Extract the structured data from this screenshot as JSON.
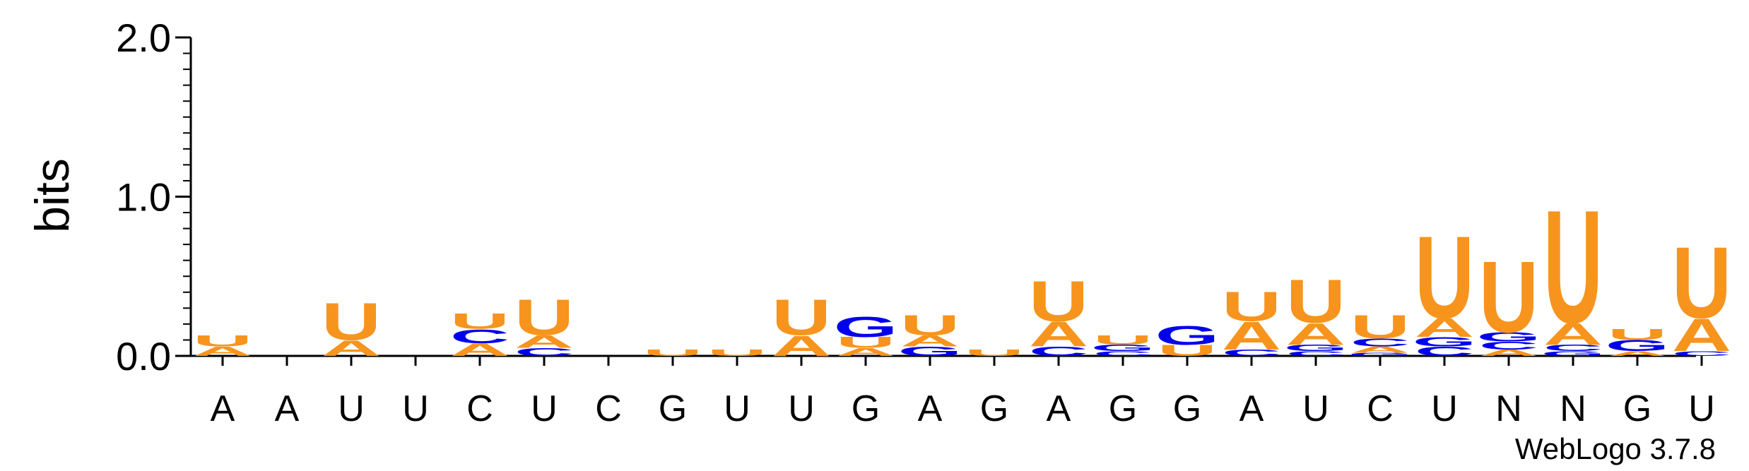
{
  "chart_data": {
    "type": "sequence-logo",
    "ylabel": "bits",
    "ylim": [
      0,
      2.0
    ],
    "yticks": [
      0.0,
      1.0,
      2.0
    ],
    "yticklabels": [
      "0.0",
      "1.0",
      "2.0"
    ],
    "credit": "WebLogo 3.7.8",
    "colors": {
      "A": "#f7941d",
      "U": "#f7941d",
      "C": "#0000ee",
      "G": "#0000ee"
    },
    "positions": [
      {
        "label": "A",
        "stack": [
          {
            "letter": "A",
            "bits": 0.06
          },
          {
            "letter": "U",
            "bits": 0.07
          }
        ]
      },
      {
        "label": "A",
        "stack": []
      },
      {
        "label": "U",
        "stack": [
          {
            "letter": "A",
            "bits": 0.1
          },
          {
            "letter": "U",
            "bits": 0.24
          }
        ]
      },
      {
        "label": "U",
        "stack": []
      },
      {
        "label": "C",
        "stack": [
          {
            "letter": "A",
            "bits": 0.08
          },
          {
            "letter": "C",
            "bits": 0.09
          },
          {
            "letter": "U",
            "bits": 0.1
          }
        ]
      },
      {
        "label": "U",
        "stack": [
          {
            "letter": "C",
            "bits": 0.05
          },
          {
            "letter": "A",
            "bits": 0.08
          },
          {
            "letter": "U",
            "bits": 0.23
          }
        ]
      },
      {
        "label": "C",
        "stack": []
      },
      {
        "label": "G",
        "stack": [
          {
            "letter": "U",
            "bits": 0.04
          }
        ]
      },
      {
        "label": "U",
        "stack": [
          {
            "letter": "U",
            "bits": 0.04
          }
        ]
      },
      {
        "label": "U",
        "stack": [
          {
            "letter": "A",
            "bits": 0.13
          },
          {
            "letter": "U",
            "bits": 0.23
          }
        ]
      },
      {
        "label": "G",
        "stack": [
          {
            "letter": "A",
            "bits": 0.05
          },
          {
            "letter": "U",
            "bits": 0.07
          },
          {
            "letter": "G",
            "bits": 0.13
          }
        ]
      },
      {
        "label": "A",
        "stack": [
          {
            "letter": "G",
            "bits": 0.06
          },
          {
            "letter": "A",
            "bits": 0.07
          },
          {
            "letter": "U",
            "bits": 0.13
          }
        ]
      },
      {
        "label": "G",
        "stack": [
          {
            "letter": "U",
            "bits": 0.04
          }
        ]
      },
      {
        "label": "A",
        "stack": [
          {
            "letter": "C",
            "bits": 0.06
          },
          {
            "letter": "A",
            "bits": 0.16
          },
          {
            "letter": "U",
            "bits": 0.26
          }
        ]
      },
      {
        "label": "G",
        "stack": [
          {
            "letter": "C",
            "bits": 0.03
          },
          {
            "letter": "G",
            "bits": 0.04
          },
          {
            "letter": "U",
            "bits": 0.06
          }
        ]
      },
      {
        "label": "G",
        "stack": [
          {
            "letter": "U",
            "bits": 0.07
          },
          {
            "letter": "G",
            "bits": 0.12
          }
        ]
      },
      {
        "label": "A",
        "stack": [
          {
            "letter": "C",
            "bits": 0.04
          },
          {
            "letter": "A",
            "bits": 0.18
          },
          {
            "letter": "U",
            "bits": 0.19
          }
        ]
      },
      {
        "label": "U",
        "stack": [
          {
            "letter": "C",
            "bits": 0.03
          },
          {
            "letter": "G",
            "bits": 0.04
          },
          {
            "letter": "A",
            "bits": 0.14
          },
          {
            "letter": "U",
            "bits": 0.28
          }
        ]
      },
      {
        "label": "C",
        "stack": [
          {
            "letter": "G",
            "bits": 0.02
          },
          {
            "letter": "A",
            "bits": 0.04
          },
          {
            "letter": "C",
            "bits": 0.05
          },
          {
            "letter": "U",
            "bits": 0.15
          }
        ]
      },
      {
        "label": "U",
        "stack": [
          {
            "letter": "C",
            "bits": 0.06
          },
          {
            "letter": "G",
            "bits": 0.06
          },
          {
            "letter": "A",
            "bits": 0.12
          },
          {
            "letter": "U",
            "bits": 0.53
          }
        ]
      },
      {
        "label": "N",
        "stack": [
          {
            "letter": "A",
            "bits": 0.04
          },
          {
            "letter": "C",
            "bits": 0.05
          },
          {
            "letter": "G",
            "bits": 0.06
          },
          {
            "letter": "U",
            "bits": 0.46
          }
        ]
      },
      {
        "label": "N",
        "stack": [
          {
            "letter": "G",
            "bits": 0.03
          },
          {
            "letter": "C",
            "bits": 0.04
          },
          {
            "letter": "A",
            "bits": 0.14
          },
          {
            "letter": "U",
            "bits": 0.73
          }
        ]
      },
      {
        "label": "G",
        "stack": [
          {
            "letter": "A",
            "bits": 0.03
          },
          {
            "letter": "G",
            "bits": 0.07
          },
          {
            "letter": "U",
            "bits": 0.07
          }
        ]
      },
      {
        "label": "U",
        "stack": [
          {
            "letter": "C",
            "bits": 0.03
          },
          {
            "letter": "A",
            "bits": 0.21
          },
          {
            "letter": "U",
            "bits": 0.46
          }
        ]
      }
    ]
  }
}
